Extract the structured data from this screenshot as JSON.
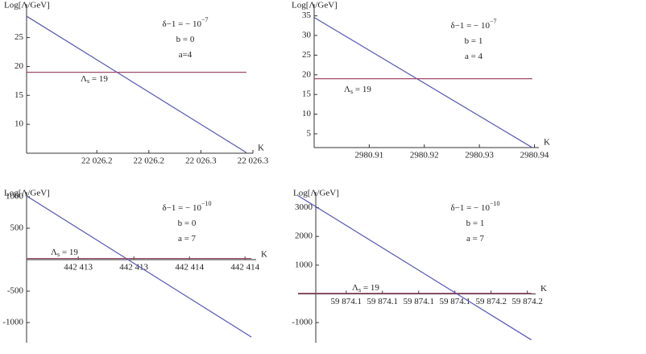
{
  "chart_data": [
    {
      "type": "line",
      "y_label": "Log[Λ/GeV]",
      "x_label": "K",
      "xlim": [
        22026.193,
        22026.28
      ],
      "ylim": [
        5,
        30.8
      ],
      "axes_origin": [
        22026.193,
        5
      ],
      "xticks": [
        {
          "value": 22026.22,
          "label": "22 026.2"
        },
        {
          "value": 22026.24,
          "label": "22 026.2"
        },
        {
          "value": 22026.26,
          "label": "22 026.3"
        },
        {
          "value": 22026.28,
          "label": "22 026.3"
        }
      ],
      "yticks": [
        10,
        15,
        20,
        25
      ],
      "series": [
        {
          "color": "#5555b5",
          "x": [
            22026.193,
            22026.2775
          ],
          "values": [
            28.7,
            5.1
          ]
        },
        {
          "color": "#a04a6a",
          "x": [
            22026.193,
            22026.2775
          ],
          "values": [
            19,
            19
          ]
        }
      ],
      "annotations": [
        {
          "text": "δ−1 = − 10",
          "sup": "−7"
        },
        {
          "text": "b = 0"
        },
        {
          "text": "a=4"
        }
      ],
      "line_label": {
        "text": "Λ",
        "sub": "s",
        "tail": " = 19"
      }
    },
    {
      "type": "line",
      "y_label": "Log[Λ/GeV]",
      "x_label": "K",
      "xlim": [
        2980.9,
        2980.9408
      ],
      "ylim": [
        1.5,
        38
      ],
      "axes_origin": [
        2980.9,
        1.5
      ],
      "xticks": [
        2980.91,
        2980.92,
        2980.93,
        2980.94
      ],
      "yticks": [
        5,
        10,
        15,
        20,
        25,
        30,
        35
      ],
      "series": [
        {
          "color": "#5555b5",
          "x": [
            2980.9,
            2980.9396
          ],
          "values": [
            34.6,
            1.5
          ]
        },
        {
          "color": "#a04a6a",
          "x": [
            2980.9,
            2980.9396
          ],
          "values": [
            19,
            19
          ]
        }
      ],
      "annotations": [
        {
          "text": "δ−1 = − 10",
          "sup": "−7"
        },
        {
          "text": "b = 1"
        },
        {
          "text": "a = 4"
        }
      ],
      "line_label": {
        "text": "Λ",
        "sub": "s",
        "tail": " = 19"
      }
    },
    {
      "type": "line",
      "y_label": "Log[Λ/GeV]",
      "x_label": "K",
      "xlim": [
        442413.014,
        442413.84
      ],
      "ylim": [
        -1320,
        1077
      ],
      "axes_origin": [
        442413.014,
        0
      ],
      "xticks": [
        {
          "value": 442413.2,
          "label": "442 413"
        },
        {
          "value": 442413.4,
          "label": "442 413"
        },
        {
          "value": 442413.6,
          "label": "442 414"
        },
        {
          "value": 442413.8,
          "label": "442 414"
        }
      ],
      "yticks": [
        -1000,
        -500,
        500,
        1000
      ],
      "series": [
        {
          "color": "#5555b5",
          "x": [
            442413.014,
            442413.823
          ],
          "values": [
            1013,
            -1230
          ]
        },
        {
          "color": "#a04a6a",
          "x": [
            442413.014,
            442413.823
          ],
          "values": [
            19,
            19
          ]
        }
      ],
      "annotations": [
        {
          "text": "δ−1 = − 10",
          "sup": "−10"
        },
        {
          "text": "b = 0"
        },
        {
          "text": "a = 7"
        }
      ],
      "line_label": {
        "text": "Λ",
        "sub": "s",
        "tail": " = 19"
      }
    },
    {
      "type": "line",
      "y_label": "Log[Λ/GeV]",
      "x_label": "K",
      "xlim": [
        59874.0967,
        59874.1623
      ],
      "ylim": [
        -1700,
        3550
      ],
      "axes_origin": [
        59874.1016,
        0
      ],
      "xticks": [
        {
          "value": 59874.11,
          "label": "59 874.1"
        },
        {
          "value": 59874.12,
          "label": "59 874.1"
        },
        {
          "value": 59874.13,
          "label": "59 874.1"
        },
        {
          "value": 59874.14,
          "label": "59 874.1"
        },
        {
          "value": 59874.15,
          "label": "59 874.2"
        },
        {
          "value": 59874.16,
          "label": "59 874.2"
        }
      ],
      "yticks": [
        -1000,
        1000,
        2000,
        3000
      ],
      "series": [
        {
          "color": "#5555b5",
          "x": [
            59874.0967,
            59874.1611
          ],
          "values": [
            3420,
            -1600
          ]
        },
        {
          "color": "#a04a6a",
          "x": [
            59874.0967,
            59874.1611
          ],
          "values": [
            19,
            19
          ]
        }
      ],
      "annotations": [
        {
          "text": "δ−1 = − 10",
          "sup": "−10"
        },
        {
          "text": "b = 1"
        },
        {
          "text": "a = 7"
        }
      ],
      "line_label": {
        "text": "Λ",
        "sub": "s",
        "tail": " = 19"
      }
    }
  ]
}
